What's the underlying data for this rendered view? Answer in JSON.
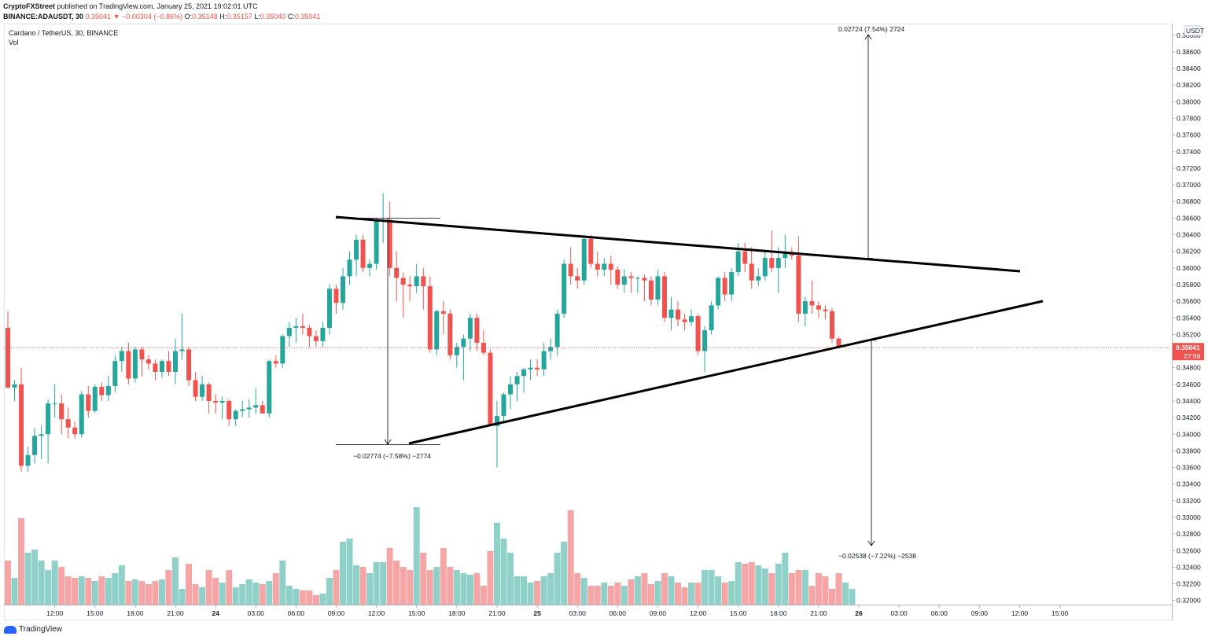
{
  "header": {
    "publisher": "CryptoFXStreet",
    "published_text": "published on TradingView.com, January 25, 2021 19:02:01 UTC",
    "symbol_interval": "BINANCE:ADAUSDT, 30",
    "last": "0.35041",
    "change": "−0.00304 (−0.86%)",
    "o_label": "O:",
    "o": "0.35148",
    "h_label": "H:",
    "h": "0.35157",
    "l_label": "L:",
    "l": "0.35040",
    "c_label": "C:",
    "c": "0.35041"
  },
  "legend": {
    "symbol": "Cardano / TetherUS, 30, BINANCE",
    "volume": "Vol"
  },
  "price_axis": {
    "currency": "USDT",
    "current_price": "0.35041",
    "countdown": "27:59"
  },
  "footer": {
    "brand": "TradingView"
  },
  "colors": {
    "up": "#26a69a",
    "down": "#ef5350",
    "vol_up": "#8fd0c8",
    "vol_down": "#f5a5a5",
    "trendline": "#000000",
    "price_line": "#ef5350"
  },
  "chart_data": {
    "type": "candlestick",
    "title": "Cardano / TetherUS, 30, BINANCE",
    "ylim": [
      0.3195,
      0.3894
    ],
    "y_ticks": [
      "0.38800",
      "0.38600",
      "0.38400",
      "0.38200",
      "0.38000",
      "0.37800",
      "0.37600",
      "0.37400",
      "0.37200",
      "0.37000",
      "0.36800",
      "0.36600",
      "0.36400",
      "0.36200",
      "0.36000",
      "0.35800",
      "0.35600",
      "0.35400",
      "0.35200",
      "0.34800",
      "0.34600",
      "0.34400",
      "0.34200",
      "0.34000",
      "0.33800",
      "0.33600",
      "0.33400",
      "0.33200",
      "0.33000",
      "0.32800",
      "0.32600",
      "0.32400",
      "0.32200",
      "0.32000"
    ],
    "x_ticks": [
      {
        "label": "12:00",
        "i": 7
      },
      {
        "label": "15:00",
        "i": 13
      },
      {
        "label": "18:00",
        "i": 19
      },
      {
        "label": "21:00",
        "i": 25
      },
      {
        "label": "24",
        "i": 31
      },
      {
        "label": "03:00",
        "i": 37
      },
      {
        "label": "06:00",
        "i": 43
      },
      {
        "label": "09:00",
        "i": 49
      },
      {
        "label": "12:00",
        "i": 55
      },
      {
        "label": "15:00",
        "i": 61
      },
      {
        "label": "18:00",
        "i": 67
      },
      {
        "label": "21:00",
        "i": 73
      },
      {
        "label": "25",
        "i": 79
      },
      {
        "label": "03:00",
        "i": 85
      },
      {
        "label": "06:00",
        "i": 91
      },
      {
        "label": "09:00",
        "i": 97
      },
      {
        "label": "12:00",
        "i": 103
      },
      {
        "label": "15:00",
        "i": 109
      },
      {
        "label": "18:00",
        "i": 115
      },
      {
        "label": "21:00",
        "i": 121
      },
      {
        "label": "26",
        "i": 127
      },
      {
        "label": "03:00",
        "i": 133
      },
      {
        "label": "06:00",
        "i": 139
      },
      {
        "label": "09:00",
        "i": 145
      },
      {
        "label": "12:00",
        "i": 151
      },
      {
        "label": "15:00",
        "i": 157
      }
    ],
    "candles": [
      [
        0.3528,
        0.3548,
        0.3458,
        0.3456
      ],
      [
        0.3456,
        0.3465,
        0.344,
        0.346
      ],
      [
        0.346,
        0.348,
        0.3355,
        0.3362
      ],
      [
        0.3362,
        0.3385,
        0.3355,
        0.3375
      ],
      [
        0.3375,
        0.3408,
        0.3365,
        0.3398
      ],
      [
        0.3398,
        0.341,
        0.337,
        0.34
      ],
      [
        0.34,
        0.3442,
        0.3365,
        0.3437
      ],
      [
        0.3437,
        0.346,
        0.342,
        0.3437
      ],
      [
        0.3437,
        0.3448,
        0.34,
        0.3418
      ],
      [
        0.3418,
        0.3432,
        0.3395,
        0.3408
      ],
      [
        0.3408,
        0.3415,
        0.3395,
        0.34
      ],
      [
        0.34,
        0.3452,
        0.3396,
        0.3448
      ],
      [
        0.3448,
        0.3458,
        0.342,
        0.3428
      ],
      [
        0.3428,
        0.346,
        0.3426,
        0.3457
      ],
      [
        0.3457,
        0.3462,
        0.344,
        0.3447
      ],
      [
        0.3447,
        0.347,
        0.344,
        0.3458
      ],
      [
        0.3458,
        0.3495,
        0.345,
        0.3488
      ],
      [
        0.3488,
        0.3505,
        0.3475,
        0.35
      ],
      [
        0.35,
        0.351,
        0.346,
        0.3467
      ],
      [
        0.3467,
        0.3505,
        0.3462,
        0.3502
      ],
      [
        0.3502,
        0.3505,
        0.347,
        0.349
      ],
      [
        0.349,
        0.3495,
        0.3478,
        0.3485
      ],
      [
        0.3485,
        0.349,
        0.3465,
        0.3475
      ],
      [
        0.3475,
        0.349,
        0.3468,
        0.3488
      ],
      [
        0.3488,
        0.35,
        0.347,
        0.3475
      ],
      [
        0.3475,
        0.3515,
        0.346,
        0.35
      ],
      [
        0.35,
        0.3545,
        0.349,
        0.3502
      ],
      [
        0.3502,
        0.3505,
        0.3458,
        0.3465
      ],
      [
        0.3465,
        0.3475,
        0.344,
        0.3445
      ],
      [
        0.3445,
        0.347,
        0.344,
        0.346
      ],
      [
        0.346,
        0.3462,
        0.3425,
        0.344
      ],
      [
        0.344,
        0.3448,
        0.3425,
        0.3438
      ],
      [
        0.3438,
        0.3445,
        0.3418,
        0.344
      ],
      [
        0.344,
        0.3442,
        0.341,
        0.3418
      ],
      [
        0.3418,
        0.343,
        0.341,
        0.3428
      ],
      [
        0.3428,
        0.344,
        0.342,
        0.343
      ],
      [
        0.343,
        0.3442,
        0.342,
        0.3432
      ],
      [
        0.3432,
        0.3455,
        0.3425,
        0.3435
      ],
      [
        0.3435,
        0.344,
        0.3425,
        0.3425
      ],
      [
        0.3425,
        0.349,
        0.342,
        0.3488
      ],
      [
        0.3488,
        0.3495,
        0.348,
        0.3485
      ],
      [
        0.3485,
        0.352,
        0.348,
        0.3518
      ],
      [
        0.3518,
        0.3535,
        0.3505,
        0.3528
      ],
      [
        0.3528,
        0.354,
        0.351,
        0.353
      ],
      [
        0.353,
        0.3545,
        0.352,
        0.3528
      ],
      [
        0.3528,
        0.3532,
        0.3505,
        0.3518
      ],
      [
        0.3518,
        0.3525,
        0.3505,
        0.3512
      ],
      [
        0.3512,
        0.3535,
        0.3505,
        0.3528
      ],
      [
        0.3528,
        0.358,
        0.352,
        0.3575
      ],
      [
        0.3575,
        0.358,
        0.3545,
        0.3558
      ],
      [
        0.3558,
        0.36,
        0.355,
        0.359
      ],
      [
        0.359,
        0.362,
        0.358,
        0.361
      ],
      [
        0.361,
        0.364,
        0.359,
        0.3634
      ],
      [
        0.3634,
        0.364,
        0.3595,
        0.36
      ],
      [
        0.36,
        0.361,
        0.359,
        0.3605
      ],
      [
        0.3605,
        0.366,
        0.3598,
        0.3658
      ],
      [
        0.3658,
        0.369,
        0.363,
        0.3658
      ],
      [
        0.3658,
        0.368,
        0.359,
        0.36
      ],
      [
        0.36,
        0.362,
        0.356,
        0.3588
      ],
      [
        0.3588,
        0.3595,
        0.354,
        0.358
      ],
      [
        0.358,
        0.359,
        0.356,
        0.3578
      ],
      [
        0.3578,
        0.3605,
        0.357,
        0.359
      ],
      [
        0.359,
        0.36,
        0.355,
        0.3578
      ],
      [
        0.3578,
        0.359,
        0.3498,
        0.3502
      ],
      [
        0.3502,
        0.355,
        0.3495,
        0.3548
      ],
      [
        0.3548,
        0.356,
        0.352,
        0.3545
      ],
      [
        0.3545,
        0.355,
        0.349,
        0.3495
      ],
      [
        0.3495,
        0.351,
        0.348,
        0.3505
      ],
      [
        0.3505,
        0.352,
        0.3465,
        0.3515
      ],
      [
        0.3515,
        0.3545,
        0.35,
        0.354
      ],
      [
        0.354,
        0.3545,
        0.35,
        0.351
      ],
      [
        0.351,
        0.3525,
        0.3495,
        0.3498
      ],
      [
        0.3498,
        0.3502,
        0.341,
        0.341
      ],
      [
        0.341,
        0.344,
        0.336,
        0.3422
      ],
      [
        0.3422,
        0.345,
        0.3415,
        0.3448
      ],
      [
        0.3448,
        0.347,
        0.343,
        0.346
      ],
      [
        0.346,
        0.3475,
        0.344,
        0.347
      ],
      [
        0.347,
        0.348,
        0.345,
        0.3478
      ],
      [
        0.3478,
        0.349,
        0.3465,
        0.348
      ],
      [
        0.348,
        0.349,
        0.347,
        0.3478
      ],
      [
        0.3478,
        0.351,
        0.347,
        0.35
      ],
      [
        0.35,
        0.3515,
        0.349,
        0.3505
      ],
      [
        0.3505,
        0.355,
        0.3495,
        0.3545
      ],
      [
        0.3545,
        0.361,
        0.354,
        0.3605
      ],
      [
        0.3605,
        0.3625,
        0.358,
        0.359
      ],
      [
        0.359,
        0.36,
        0.3575,
        0.3585
      ],
      [
        0.3585,
        0.364,
        0.358,
        0.3635
      ],
      [
        0.3635,
        0.364,
        0.36,
        0.3605
      ],
      [
        0.3605,
        0.362,
        0.359,
        0.3598
      ],
      [
        0.3598,
        0.3612,
        0.359,
        0.3605
      ],
      [
        0.3605,
        0.3615,
        0.358,
        0.3598
      ],
      [
        0.3598,
        0.3602,
        0.3575,
        0.358
      ],
      [
        0.358,
        0.3598,
        0.357,
        0.359
      ],
      [
        0.359,
        0.3595,
        0.357,
        0.3588
      ],
      [
        0.3588,
        0.359,
        0.357,
        0.3588
      ],
      [
        0.3588,
        0.3592,
        0.356,
        0.3585
      ],
      [
        0.3585,
        0.359,
        0.3555,
        0.3562
      ],
      [
        0.3562,
        0.3598,
        0.3555,
        0.359
      ],
      [
        0.359,
        0.3595,
        0.3535,
        0.354
      ],
      [
        0.354,
        0.3565,
        0.3525,
        0.355
      ],
      [
        0.355,
        0.356,
        0.353,
        0.3538
      ],
      [
        0.3538,
        0.3545,
        0.3525,
        0.3535
      ],
      [
        0.3535,
        0.355,
        0.353,
        0.3542
      ],
      [
        0.3542,
        0.3545,
        0.3495,
        0.35
      ],
      [
        0.35,
        0.353,
        0.3475,
        0.3525
      ],
      [
        0.3525,
        0.356,
        0.352,
        0.3555
      ],
      [
        0.3555,
        0.359,
        0.355,
        0.3588
      ],
      [
        0.3588,
        0.3595,
        0.356,
        0.3568
      ],
      [
        0.3568,
        0.36,
        0.356,
        0.3595
      ],
      [
        0.3595,
        0.363,
        0.359,
        0.362
      ],
      [
        0.362,
        0.363,
        0.3595,
        0.3605
      ],
      [
        0.3605,
        0.3625,
        0.3575,
        0.3585
      ],
      [
        0.3585,
        0.36,
        0.3578,
        0.359
      ],
      [
        0.359,
        0.362,
        0.3585,
        0.3612
      ],
      [
        0.3612,
        0.3645,
        0.3595,
        0.36
      ],
      [
        0.36,
        0.3625,
        0.357,
        0.3612
      ],
      [
        0.3612,
        0.364,
        0.36,
        0.3618
      ],
      [
        0.3618,
        0.3625,
        0.361,
        0.3615
      ],
      [
        0.3615,
        0.3638,
        0.3535,
        0.3545
      ],
      [
        0.3545,
        0.3565,
        0.353,
        0.356
      ],
      [
        0.356,
        0.3585,
        0.3545,
        0.3555
      ],
      [
        0.3555,
        0.356,
        0.354,
        0.355
      ],
      [
        0.355,
        0.3555,
        0.3538,
        0.3548
      ],
      [
        0.3548,
        0.3552,
        0.351,
        0.3515
      ],
      [
        0.3515,
        0.3517,
        0.3504,
        0.3504
      ]
    ],
    "volume_ylim": [
      0,
      100
    ],
    "volumes": [
      28,
      17,
      55,
      33,
      35,
      28,
      22,
      28,
      24,
      18,
      17,
      18,
      17,
      15,
      18,
      17,
      20,
      25,
      15,
      16,
      15,
      13,
      15,
      16,
      22,
      30,
      10,
      26,
      13,
      11,
      22,
      17,
      14,
      22,
      11,
      13,
      16,
      14,
      13,
      15,
      20,
      28,
      12,
      10,
      9,
      9,
      6,
      7,
      17,
      22,
      40,
      42,
      25,
      24,
      20,
      27,
      27,
      36,
      28,
      24,
      22,
      62,
      33,
      22,
      24,
      36,
      24,
      22,
      20,
      19,
      20,
      12,
      34,
      52,
      42,
      33,
      18,
      18,
      14,
      15,
      18,
      20,
      33,
      40,
      60,
      20,
      17,
      12,
      12,
      14,
      12,
      14,
      12,
      16,
      18,
      20,
      13,
      15,
      20,
      18,
      14,
      11,
      14,
      14,
      22,
      22,
      18,
      14,
      15,
      27,
      26,
      27,
      25,
      23,
      20,
      26,
      33,
      20,
      22,
      22,
      12,
      20,
      18,
      10,
      20,
      14,
      10
    ]
  },
  "annotations": {
    "range_left": "−0.02774 (−7.58%) −2774",
    "range_top": "0.02724 (7.54%) 2724",
    "range_bottom": "−0.02538 (−7.22%) −2538"
  }
}
